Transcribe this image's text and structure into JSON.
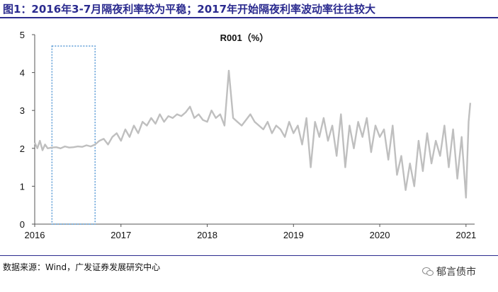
{
  "header": {
    "title": "图1：2016年3-7月隔夜利率较为平稳；2017年开始隔夜利率波动率往往较大"
  },
  "footer": {
    "source": "数据来源：Wind，广发证券发展研究中心",
    "watermark": "郁言债市",
    "watermark_icon": "wechat-icon"
  },
  "colors": {
    "title": "#2b2b8f",
    "series": "#bfbfbf",
    "highlight_box": "#5b9bd5"
  },
  "chart_data": {
    "type": "line",
    "title": "R001（%）",
    "xlabel": "",
    "ylabel": "",
    "xlim": [
      2016.0,
      2021.1
    ],
    "ylim": [
      0,
      5
    ],
    "x_ticks": [
      2016,
      2017,
      2018,
      2019,
      2020,
      2021
    ],
    "x_tick_labels": [
      "2016",
      "2017",
      "2018",
      "2019",
      "2020",
      "2021"
    ],
    "y_ticks": [
      0,
      1,
      2,
      3,
      4,
      5
    ],
    "y_tick_labels": [
      "0",
      "1",
      "2",
      "3",
      "4",
      "5"
    ],
    "grid": false,
    "highlight_region": {
      "x_range": [
        2016.2,
        2016.7
      ],
      "y_range": [
        0,
        4.7
      ],
      "style": "dotted"
    },
    "series": [
      {
        "x": [
          2016.0,
          2016.03,
          2016.06,
          2016.09,
          2016.12,
          2016.15,
          2016.2,
          2016.25,
          2016.3,
          2016.35,
          2016.4,
          2016.45,
          2016.5,
          2016.55,
          2016.6,
          2016.65,
          2016.7,
          2016.75,
          2016.8,
          2016.85,
          2016.9,
          2016.95,
          2017.0,
          2017.05,
          2017.1,
          2017.15,
          2017.2,
          2017.25,
          2017.3,
          2017.35,
          2017.4,
          2017.45,
          2017.5,
          2017.55,
          2017.6,
          2017.65,
          2017.7,
          2017.75,
          2017.8,
          2017.85,
          2017.9,
          2017.95,
          2018.0,
          2018.05,
          2018.1,
          2018.15,
          2018.2,
          2018.25,
          2018.3,
          2018.35,
          2018.4,
          2018.45,
          2018.5,
          2018.55,
          2018.6,
          2018.65,
          2018.7,
          2018.75,
          2018.8,
          2018.85,
          2018.9,
          2018.95,
          2019.0,
          2019.05,
          2019.1,
          2019.15,
          2019.2,
          2019.25,
          2019.3,
          2019.35,
          2019.4,
          2019.45,
          2019.5,
          2019.55,
          2019.6,
          2019.65,
          2019.7,
          2019.75,
          2019.8,
          2019.85,
          2019.9,
          2019.95,
          2020.0,
          2020.05,
          2020.1,
          2020.15,
          2020.2,
          2020.25,
          2020.3,
          2020.35,
          2020.4,
          2020.45,
          2020.5,
          2020.55,
          2020.6,
          2020.65,
          2020.7,
          2020.75,
          2020.8,
          2020.85,
          2020.9,
          2020.95,
          2021.0,
          2021.03,
          2021.05
        ],
        "values": [
          2.15,
          2.0,
          2.2,
          1.95,
          2.1,
          2.0,
          2.02,
          2.03,
          2.0,
          2.05,
          2.02,
          2.03,
          2.05,
          2.04,
          2.08,
          2.05,
          2.1,
          2.2,
          2.25,
          2.1,
          2.3,
          2.4,
          2.2,
          2.5,
          2.3,
          2.6,
          2.4,
          2.7,
          2.6,
          2.8,
          2.65,
          2.9,
          2.7,
          2.85,
          2.8,
          2.9,
          2.85,
          2.95,
          3.1,
          2.8,
          2.9,
          2.75,
          2.7,
          3.0,
          2.8,
          2.9,
          2.6,
          4.05,
          2.8,
          2.7,
          2.6,
          2.75,
          2.9,
          2.7,
          2.6,
          2.5,
          2.7,
          2.4,
          2.6,
          2.5,
          2.3,
          2.7,
          2.4,
          2.6,
          2.1,
          2.8,
          1.5,
          2.7,
          2.3,
          2.8,
          2.2,
          2.6,
          1.8,
          2.9,
          1.5,
          2.6,
          2.0,
          2.7,
          2.3,
          2.8,
          1.9,
          2.6,
          2.3,
          2.5,
          1.7,
          2.6,
          1.3,
          1.8,
          0.9,
          1.6,
          1.0,
          2.2,
          1.4,
          2.4,
          1.6,
          2.2,
          1.8,
          2.6,
          1.5,
          2.5,
          1.2,
          2.3,
          0.7,
          2.7,
          3.2
        ]
      }
    ]
  }
}
